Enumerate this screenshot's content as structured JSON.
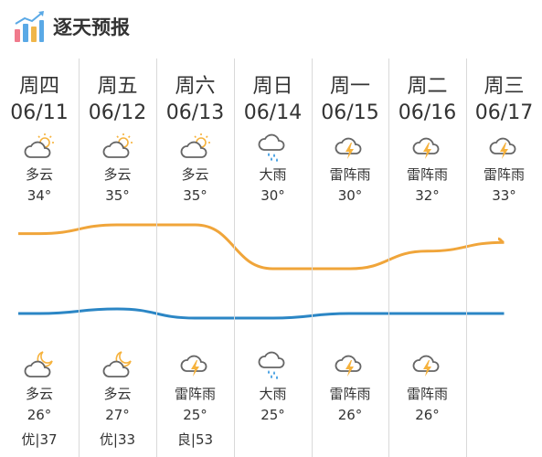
{
  "header": {
    "title": "逐天预报",
    "icon": "bar-chart-logo-icon"
  },
  "days": [
    {
      "weekday": "周四",
      "date": "06/11",
      "day_icon": "partly-cloudy-sun-icon",
      "day_cond": "多云",
      "high": "34°",
      "night_icon": "cloudy-moon-icon",
      "night_cond": "多云",
      "low": "26°",
      "aqi": "优|37"
    },
    {
      "weekday": "周五",
      "date": "06/12",
      "day_icon": "partly-cloudy-sun-icon",
      "day_cond": "多云",
      "high": "35°",
      "night_icon": "cloudy-moon-icon",
      "night_cond": "多云",
      "low": "27°",
      "aqi": "优|33"
    },
    {
      "weekday": "周六",
      "date": "06/13",
      "day_icon": "partly-cloudy-sun-icon",
      "day_cond": "多云",
      "high": "35°",
      "night_icon": "thunderstorm-icon",
      "night_cond": "雷阵雨",
      "low": "25°",
      "aqi": "良|53"
    },
    {
      "weekday": "周日",
      "date": "06/14",
      "day_icon": "heavy-rain-icon",
      "day_cond": "大雨",
      "high": "30°",
      "night_icon": "heavy-rain-icon",
      "night_cond": "大雨",
      "low": "25°",
      "aqi": ""
    },
    {
      "weekday": "周一",
      "date": "06/15",
      "day_icon": "thunderstorm-icon",
      "day_cond": "雷阵雨",
      "high": "30°",
      "night_icon": "thunderstorm-icon",
      "night_cond": "雷阵雨",
      "low": "26°",
      "aqi": ""
    },
    {
      "weekday": "周二",
      "date": "06/16",
      "day_icon": "thunderstorm-icon",
      "day_cond": "雷阵雨",
      "high": "32°",
      "night_icon": "thunderstorm-icon",
      "night_cond": "雷阵雨",
      "low": "26°",
      "aqi": ""
    },
    {
      "weekday": "周三",
      "date": "06/17",
      "day_icon": "thunderstorm-icon",
      "day_cond": "雷阵雨",
      "high": "33°",
      "night_icon": "",
      "night_cond": "",
      "low": "",
      "aqi": ""
    }
  ],
  "chart_data": {
    "type": "line",
    "categories": [
      "06/11",
      "06/12",
      "06/13",
      "06/14",
      "06/15",
      "06/16",
      "06/17"
    ],
    "series": [
      {
        "values": [
          34,
          35,
          35,
          30,
          30,
          32,
          33
        ],
        "color": "#f0a53a"
      },
      {
        "values": [
          26,
          27,
          25,
          25,
          26,
          26,
          26
        ],
        "color": "#2b86c5"
      }
    ]
  },
  "colors": {
    "high_line": "#f0a53a",
    "low_line": "#2b86c5",
    "divider": "#d9d9d9",
    "sun": "#f6b23c",
    "bolt": "#f6b23c",
    "rain": "#3b9ae1"
  }
}
